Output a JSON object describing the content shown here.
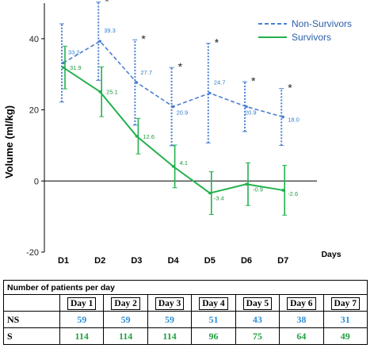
{
  "chart_data": {
    "type": "line",
    "ylabel": "Volume (ml/kg)",
    "xlabel": "Days",
    "categories": [
      "D1",
      "D2",
      "D3",
      "D4",
      "D5",
      "D6",
      "D7"
    ],
    "ylim": [
      -20,
      50
    ],
    "yticks": [
      "40",
      "20",
      "0",
      "-20"
    ],
    "ytick_values": [
      40,
      20,
      0,
      -20
    ],
    "legend_position": "top-right",
    "significance_marker": "*",
    "significant_days": [
      "D2",
      "D3",
      "D4",
      "D5",
      "D6",
      "D7"
    ],
    "series": [
      {
        "name": "Non-Survivors",
        "color": "#4a7fd0",
        "style": "dashed",
        "values": [
          33.2,
          39.3,
          27.7,
          20.9,
          24.7,
          20.9,
          18.0
        ],
        "labels": [
          "33.2",
          "39.3",
          "27.7",
          "20.9",
          "24.7",
          "20.9",
          "18.0"
        ],
        "err": [
          11,
          11,
          12,
          11,
          14,
          7,
          8
        ]
      },
      {
        "name": "Survivors",
        "color": "#22b14c",
        "style": "solid",
        "values": [
          31.9,
          25.1,
          12.6,
          4.1,
          -3.4,
          -0.9,
          -2.6
        ],
        "labels": [
          "31.9",
          "25.1",
          "12.6",
          "4.1",
          "-3.4",
          "-0.9",
          "-2.6"
        ],
        "err": [
          6,
          7,
          5,
          6,
          6,
          6,
          7
        ]
      }
    ]
  },
  "table": {
    "title": "Number of patients per day",
    "headers": [
      "Day 1",
      "Day 2",
      "Day 3",
      "Day 4",
      "Day 5",
      "Day 6",
      "Day 7"
    ],
    "rows": [
      {
        "label": "NS",
        "values": [
          "59",
          "59",
          "59",
          "51",
          "43",
          "38",
          "31"
        ]
      },
      {
        "label": "S",
        "values": [
          "114",
          "114",
          "114",
          "96",
          "75",
          "64",
          "49"
        ]
      }
    ]
  }
}
